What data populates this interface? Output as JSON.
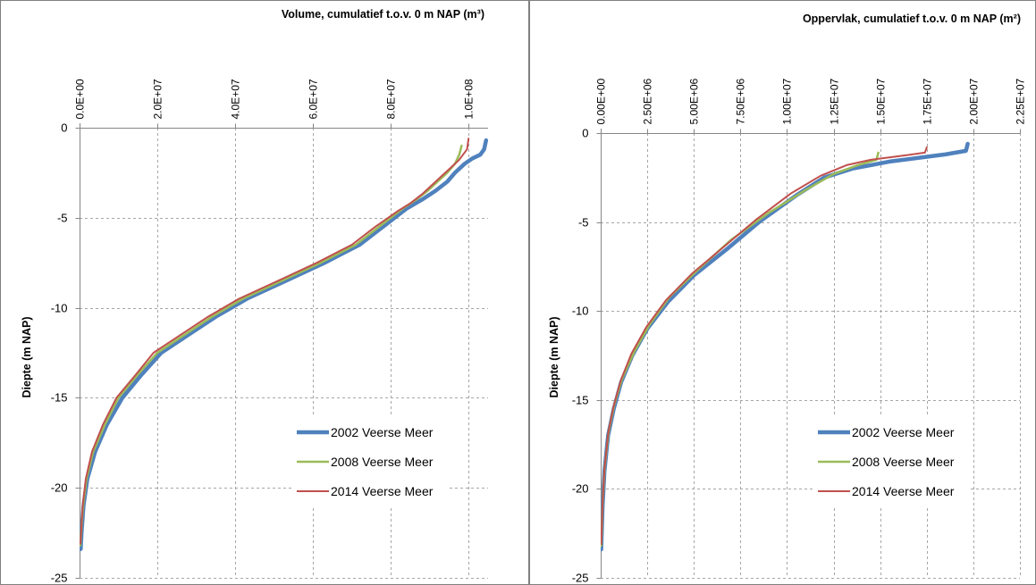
{
  "chart_data": [
    {
      "type": "line",
      "title": "Volume, cumulatief t.o.v. 0 m NAP (m³)",
      "ylabel": "Diepte (m NAP)",
      "x_axis_position": "top",
      "xlim": [
        0,
        105000000
      ],
      "ylim": [
        -25,
        0
      ],
      "x_ticks": [
        0,
        20000000,
        40000000,
        60000000,
        80000000,
        100000000
      ],
      "x_tick_labels": [
        "0.0E+00",
        "2.0E+07",
        "4.0E+07",
        "6.0E+07",
        "8.0E+07",
        "1.0E+08"
      ],
      "y_ticks": [
        0,
        -5,
        -10,
        -15,
        -20,
        -25
      ],
      "y_tick_labels": [
        "0",
        "-5",
        "-10",
        "-15",
        "-20",
        "-25"
      ],
      "grid": true,
      "legend_position": "bottom-right",
      "series": [
        {
          "name": "2002 Veerse Meer",
          "color": "#4f81bd",
          "x": [
            104500000,
            104000000,
            103000000,
            101000000,
            99000000,
            96500000,
            94500000,
            91500000,
            88000000,
            84000000,
            78000000,
            72000000,
            63000000,
            53000000,
            43000000,
            35000000,
            28000000,
            21000000,
            16000000,
            11000000,
            7000000,
            4000000,
            2000000,
            1000000,
            500000,
            300000
          ],
          "y": [
            -0.7,
            -1.2,
            -1.5,
            -1.7,
            -2.0,
            -2.5,
            -3.0,
            -3.5,
            -4.0,
            -4.5,
            -5.5,
            -6.5,
            -7.5,
            -8.5,
            -9.5,
            -10.5,
            -11.5,
            -12.5,
            -13.7,
            -15.0,
            -16.5,
            -18.0,
            -19.5,
            -21.0,
            -22.5,
            -23.4
          ]
        },
        {
          "name": "2008 Veerse Meer",
          "color": "#9bbb59",
          "x": [
            98200000,
            97600000,
            96500000,
            94500000,
            92000000,
            89500000,
            86500000,
            83000000,
            77000000,
            71000000,
            62000000,
            52000000,
            42000000,
            34000000,
            27000000,
            20000000,
            15000000,
            10000000,
            6500000,
            3500000,
            1800000,
            900000,
            400000,
            200000
          ],
          "y": [
            -1.0,
            -1.5,
            -2.0,
            -2.5,
            -3.0,
            -3.5,
            -4.0,
            -4.5,
            -5.5,
            -6.5,
            -7.5,
            -8.5,
            -9.5,
            -10.5,
            -11.5,
            -12.5,
            -13.7,
            -15.0,
            -16.5,
            -18.0,
            -19.5,
            -21.0,
            -22.5,
            -23.2
          ]
        },
        {
          "name": "2014 Veerse Meer",
          "color": "#c0504d",
          "x": [
            100000000,
            99600000,
            97500000,
            95500000,
            93000000,
            90500000,
            88000000,
            85000000,
            82000000,
            76000000,
            70000000,
            61000000,
            51000000,
            41000000,
            33000000,
            26000000,
            19000000,
            14500000,
            9500000,
            6000000,
            3200000,
            1600000,
            800000,
            400000,
            200000
          ],
          "y": [
            -0.6,
            -1.2,
            -1.8,
            -2.2,
            -2.7,
            -3.2,
            -3.7,
            -4.2,
            -4.6,
            -5.5,
            -6.5,
            -7.5,
            -8.5,
            -9.5,
            -10.5,
            -11.5,
            -12.5,
            -13.7,
            -15.0,
            -16.5,
            -18.0,
            -19.5,
            -21.0,
            -22.5,
            -23.1
          ]
        }
      ]
    },
    {
      "type": "line",
      "title": "Oppervlak, cumulatief t.o.v. 0 m NAP (m²)",
      "ylabel": "Diepte (m NAP)",
      "x_axis_position": "top",
      "xlim": [
        0,
        22500000
      ],
      "ylim": [
        -25,
        0
      ],
      "x_ticks": [
        0,
        2500000,
        5000000,
        7500000,
        10000000,
        12500000,
        15000000,
        17500000,
        20000000,
        22500000
      ],
      "x_tick_labels": [
        "0.00E+00",
        "2.50E+06",
        "5.00E+06",
        "7.50E+06",
        "1.00E+07",
        "1.25E+07",
        "1.50E+07",
        "1.75E+07",
        "2.00E+07",
        "2.25E+07"
      ],
      "y_ticks": [
        0,
        -5,
        -10,
        -15,
        -20,
        -25
      ],
      "y_tick_labels": [
        "0",
        "-5",
        "-10",
        "-15",
        "-20",
        "-25"
      ],
      "grid": true,
      "legend_position": "bottom-right",
      "series": [
        {
          "name": "2002 Veerse Meer",
          "color": "#4f81bd",
          "x": [
            19700000,
            19600000,
            18500000,
            17000000,
            15500000,
            14500000,
            13500000,
            12000000,
            10500000,
            8500000,
            6800000,
            5000000,
            3600000,
            2500000,
            1700000,
            1100000,
            700000,
            400000,
            200000,
            100000,
            30000
          ],
          "y": [
            -0.6,
            -1.0,
            -1.2,
            -1.4,
            -1.6,
            -1.8,
            -2.0,
            -2.5,
            -3.5,
            -5.0,
            -6.5,
            -8.0,
            -9.5,
            -11.0,
            -12.5,
            -14.0,
            -15.5,
            -17.0,
            -19.0,
            -21.0,
            -23.4
          ]
        },
        {
          "name": "2008 Veerse Meer",
          "color": "#9bbb59",
          "x": [
            14900000,
            14800000,
            13800000,
            12500000,
            11000000,
            9000000,
            7000000,
            5200000,
            3700000,
            2600000,
            1800000,
            1150000,
            720000,
            420000,
            210000,
            100000,
            30000
          ],
          "y": [
            -1.1,
            -1.5,
            -1.8,
            -2.3,
            -3.2,
            -4.5,
            -6.0,
            -7.7,
            -9.2,
            -10.8,
            -12.3,
            -13.8,
            -15.3,
            -16.8,
            -18.8,
            -20.8,
            -23.2
          ]
        },
        {
          "name": "2014 Veerse Meer",
          "color": "#c0504d",
          "x": [
            17500000,
            17400000,
            16000000,
            14500000,
            13200000,
            11800000,
            10200000,
            8300000,
            6600000,
            4900000,
            3500000,
            2450000,
            1650000,
            1080000,
            680000,
            400000,
            200000,
            95000,
            30000
          ],
          "y": [
            -0.8,
            -1.1,
            -1.3,
            -1.5,
            -1.8,
            -2.4,
            -3.4,
            -4.9,
            -6.4,
            -7.9,
            -9.4,
            -10.9,
            -12.4,
            -13.9,
            -15.4,
            -16.9,
            -18.9,
            -20.9,
            -23.1
          ]
        }
      ]
    }
  ]
}
